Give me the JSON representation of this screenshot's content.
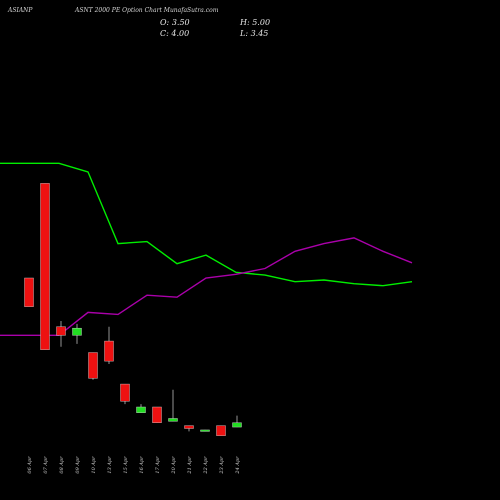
{
  "header": {
    "ticker": "ASIANP",
    "subtitle": "ASNT 2000 PE Option Chart MunafaSutra.com",
    "ohlc": {
      "open_label": "O:",
      "open": "3.50",
      "high_label": "H:",
      "high": "5.00",
      "close_label": "C:",
      "close": "4.00",
      "low_label": "L:",
      "low": "3.45"
    }
  },
  "chart_data": {
    "type": "candlestick",
    "categories": [
      "06 Apr",
      "07 Apr",
      "08 Apr",
      "09 Apr",
      "10 Apr",
      "13 Apr",
      "15 Apr",
      "16 Apr",
      "17 Apr",
      "20 Apr",
      "21 Apr",
      "22 Apr",
      "23 Apr",
      "24 Apr"
    ],
    "candles": [
      {
        "open": 60.0,
        "high": 60.0,
        "close": 50.0,
        "low": 50.0,
        "color": "red"
      },
      {
        "open": 93.0,
        "high": 93.0,
        "close": 35.0,
        "low": 35.0,
        "color": "red"
      },
      {
        "open": 43.0,
        "high": 45.0,
        "close": 40.0,
        "low": 36.0,
        "color": "red"
      },
      {
        "open": 40.0,
        "high": 44.0,
        "close": 42.5,
        "low": 37.0,
        "color": "green"
      },
      {
        "open": 34.0,
        "high": 34.0,
        "close": 25.0,
        "low": 24.5,
        "color": "red"
      },
      {
        "open": 38.0,
        "high": 43.0,
        "close": 31.0,
        "low": 30.0,
        "color": "red"
      },
      {
        "open": 23.0,
        "high": 23.0,
        "close": 17.0,
        "low": 16.0,
        "color": "red"
      },
      {
        "open": 15.0,
        "high": 16.0,
        "close": 13.0,
        "low": 13.0,
        "color": "green"
      },
      {
        "open": 15.0,
        "high": 15.0,
        "close": 9.5,
        "low": 9.5,
        "color": "red"
      },
      {
        "open": 10.0,
        "high": 21.0,
        "close": 11.0,
        "low": 10.0,
        "color": "green"
      },
      {
        "open": 8.5,
        "high": 8.5,
        "close": 7.5,
        "low": 6.5,
        "color": "red"
      },
      {
        "open": 7.0,
        "high": 7.0,
        "close": 6.5,
        "low": 6.5,
        "color": "green"
      },
      {
        "open": 8.5,
        "high": 8.5,
        "close": 5.0,
        "low": 5.0,
        "color": "red"
      },
      {
        "open": 8.0,
        "high": 12.0,
        "close": 9.5,
        "low": 8.0,
        "color": "green"
      }
    ],
    "series": [
      {
        "color": "#00ee00",
        "values": [
          100.0,
          100.0,
          97.0,
          72.0,
          72.7,
          65.0,
          68.0,
          62.0,
          61.0,
          58.7,
          59.3,
          58.0,
          57.3,
          58.7
        ]
      },
      {
        "color": "#aa00aa",
        "values": [
          40.0,
          40.0,
          48.0,
          47.3,
          54.0,
          53.3,
          60.0,
          61.3,
          63.3,
          69.3,
          72.0,
          74.0,
          69.3,
          65.3
        ]
      }
    ],
    "ylim": [
      0,
      150
    ],
    "grid": false,
    "legend": "none"
  }
}
